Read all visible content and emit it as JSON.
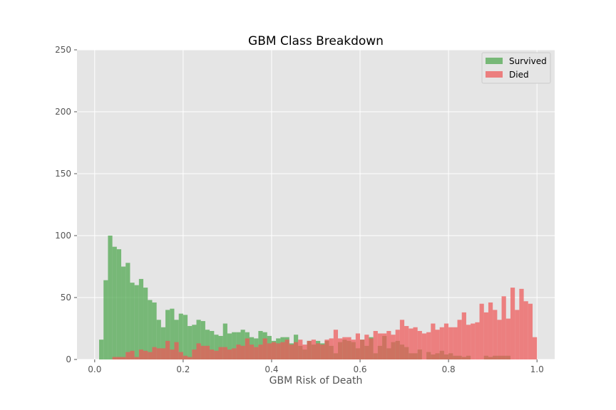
{
  "chart_data": {
    "type": "histogram",
    "title": "GBM Class Breakdown",
    "xlabel": "GBM Risk of Death",
    "ylabel": "",
    "xlim": [
      -0.04,
      1.04
    ],
    "ylim": [
      0,
      250
    ],
    "xticks": [
      "0.0",
      "0.2",
      "0.4",
      "0.6",
      "0.8",
      "1.0"
    ],
    "xtick_values": [
      0,
      0.2,
      0.4,
      0.6,
      0.8,
      1.0
    ],
    "yticks": [
      "0",
      "50",
      "100",
      "150",
      "200",
      "250"
    ],
    "ytick_values": [
      0,
      50,
      100,
      150,
      200,
      250
    ],
    "grid": true,
    "legend_position": "top-right",
    "bin_start": 0.0,
    "bin_width": 0.01,
    "series": [
      {
        "name": "Survived",
        "color": "#4ca64c",
        "values": [
          0,
          16,
          64,
          100,
          91,
          89,
          75,
          78,
          62,
          60,
          65,
          58,
          48,
          46,
          32,
          26,
          40,
          41,
          32,
          37,
          36,
          27,
          28,
          32,
          31,
          24,
          23,
          20,
          19,
          29,
          21,
          22,
          22,
          24,
          22,
          18,
          17,
          23,
          22,
          19,
          15,
          17,
          18,
          18,
          13,
          20,
          11,
          8,
          15,
          12,
          15,
          13,
          15,
          11,
          5,
          14,
          16,
          15,
          14,
          9,
          16,
          11,
          18,
          5,
          11,
          19,
          9,
          14,
          15,
          12,
          10,
          5,
          5,
          8,
          0,
          6,
          4,
          5,
          7,
          4,
          5,
          3,
          3,
          2,
          3,
          0,
          0,
          0,
          3,
          2,
          3,
          3,
          3,
          3,
          0,
          0,
          0,
          0,
          0,
          0
        ]
      },
      {
        "name": "Died",
        "color": "#ee5757",
        "values": [
          0,
          0,
          0,
          0,
          2,
          2,
          2,
          6,
          7,
          2,
          8,
          7,
          6,
          10,
          9,
          9,
          15,
          8,
          14,
          6,
          3,
          2,
          8,
          13,
          11,
          11,
          8,
          7,
          10,
          10,
          8,
          9,
          12,
          11,
          17,
          12,
          10,
          12,
          17,
          13,
          14,
          13,
          14,
          16,
          12,
          14,
          16,
          12,
          15,
          16,
          13,
          12,
          16,
          17,
          24,
          17,
          18,
          18,
          16,
          21,
          16,
          20,
          17,
          23,
          21,
          21,
          23,
          20,
          24,
          32,
          27,
          25,
          26,
          23,
          21,
          22,
          29,
          24,
          26,
          29,
          26,
          26,
          32,
          38,
          28,
          29,
          30,
          45,
          38,
          46,
          40,
          32,
          51,
          33,
          58,
          40,
          57,
          47,
          45,
          18
        ]
      }
    ]
  }
}
